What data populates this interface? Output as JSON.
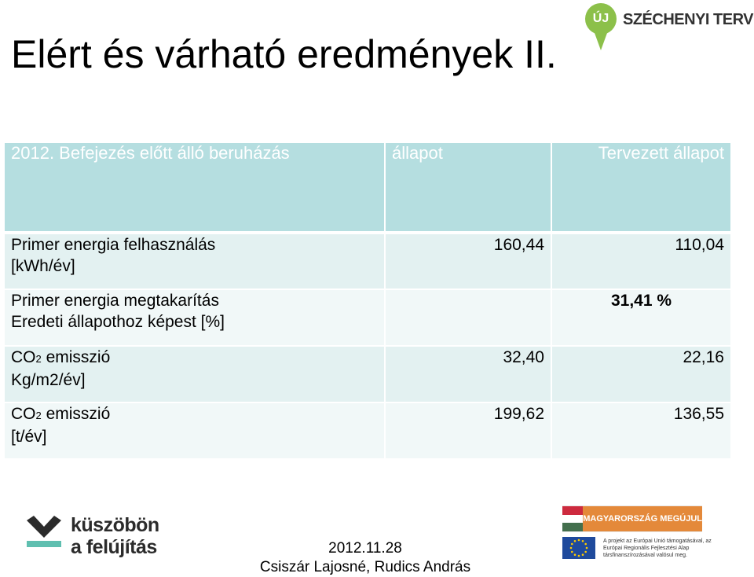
{
  "title": "Elért és várható eredmények II.",
  "logos": {
    "szechenyi_badge": "ÚJ",
    "szechenyi_name": "SZÉCHENYI TERV",
    "kuszobon_line1": "küszöbön",
    "kuszobon_line2": "a felújítás",
    "megujul_label": "MAGYARORSZÁG MEGÚJUL",
    "eu_text": "A projekt az Európai Unió támogatásával, az Európai Regionális Fejlesztési Alap társfinanszírozásával valósul meg."
  },
  "table": {
    "headers": [
      "2012. Befejezés előtt álló beruházás",
      "állapot",
      "Tervezett állapot"
    ],
    "rows": [
      {
        "label_line1": "Primer energia felhasználás",
        "label_line2": "[kWh/év]",
        "current": "160,44",
        "planned": "110,04"
      },
      {
        "label_line1": "Primer energia megtakarítás",
        "label_line2": "Eredeti állapothoz képest [%]",
        "current": "",
        "planned": "31,41 %"
      },
      {
        "label_pre": "CO",
        "label_sub": "2",
        "label_post": " emisszió",
        "label_line2": "Kg/m2/év]",
        "current": "32,40",
        "planned": "22,16"
      },
      {
        "label_pre": "CO",
        "label_sub": "2",
        "label_post": " emisszió",
        "label_line2": "[t/év]",
        "current": "199,62",
        "planned": "136,55"
      }
    ]
  },
  "footer": {
    "date": "2012.11.28",
    "authors": "Csiszár Lajosné, Rudics András"
  },
  "colors": {
    "header_bg": "#b5dee0",
    "row_odd": "#e3f1f1",
    "row_even": "#f1f8f8",
    "green": "#8cc04a",
    "teal": "#5fbfb0"
  }
}
